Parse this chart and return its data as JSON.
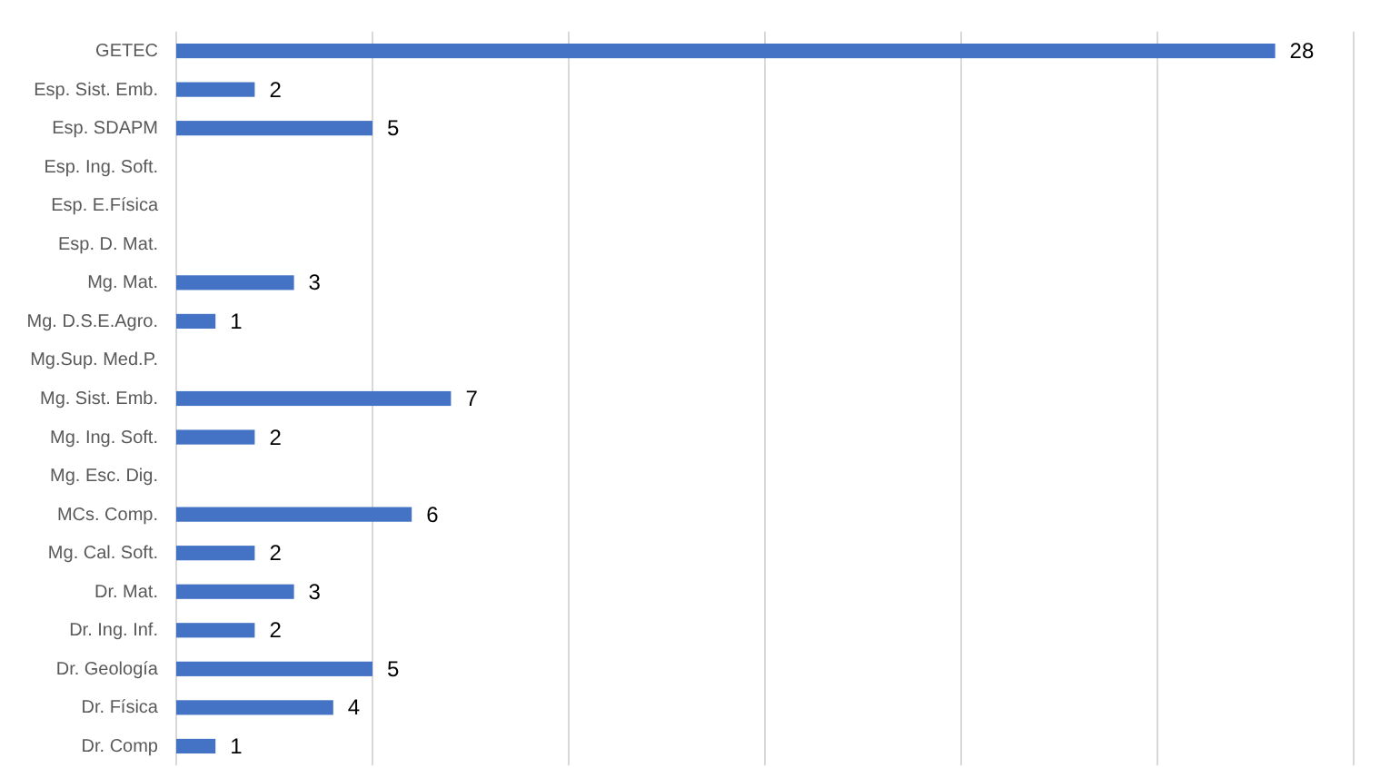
{
  "chart_data": {
    "type": "bar",
    "orientation": "horizontal",
    "categories": [
      "GETEC",
      "Esp. Sist. Emb.",
      "Esp. SDAPM",
      "Esp. Ing. Soft.",
      "Esp. E.Física",
      "Esp. D. Mat.",
      "Mg. Mat.",
      "Mg. D.S.E.Agro.",
      "Mg.Sup. Med.P.",
      "Mg. Sist. Emb.",
      "Mg. Ing. Soft.",
      "Mg. Esc. Dig.",
      "MCs. Comp.",
      "Mg. Cal. Soft.",
      "Dr. Mat.",
      "Dr. Ing. Inf.",
      "Dr. Geología",
      "Dr. Física",
      "Dr. Comp"
    ],
    "values": [
      28,
      2,
      5,
      null,
      null,
      null,
      3,
      1,
      null,
      7,
      2,
      null,
      6,
      2,
      3,
      2,
      5,
      4,
      1
    ],
    "color": "#4472c4",
    "xlim": [
      0,
      30
    ],
    "xticks": [
      {
        "value": 0,
        "label": null
      },
      {
        "value": 5,
        "label": null
      },
      {
        "value": 10,
        "label": null
      },
      {
        "value": 15,
        "label": null
      },
      {
        "value": 20,
        "label": null
      },
      {
        "value": 25,
        "label": null
      },
      {
        "value": 30,
        "label": null
      }
    ],
    "tick_labels": "y",
    "grid": "x",
    "data_labels": true
  }
}
